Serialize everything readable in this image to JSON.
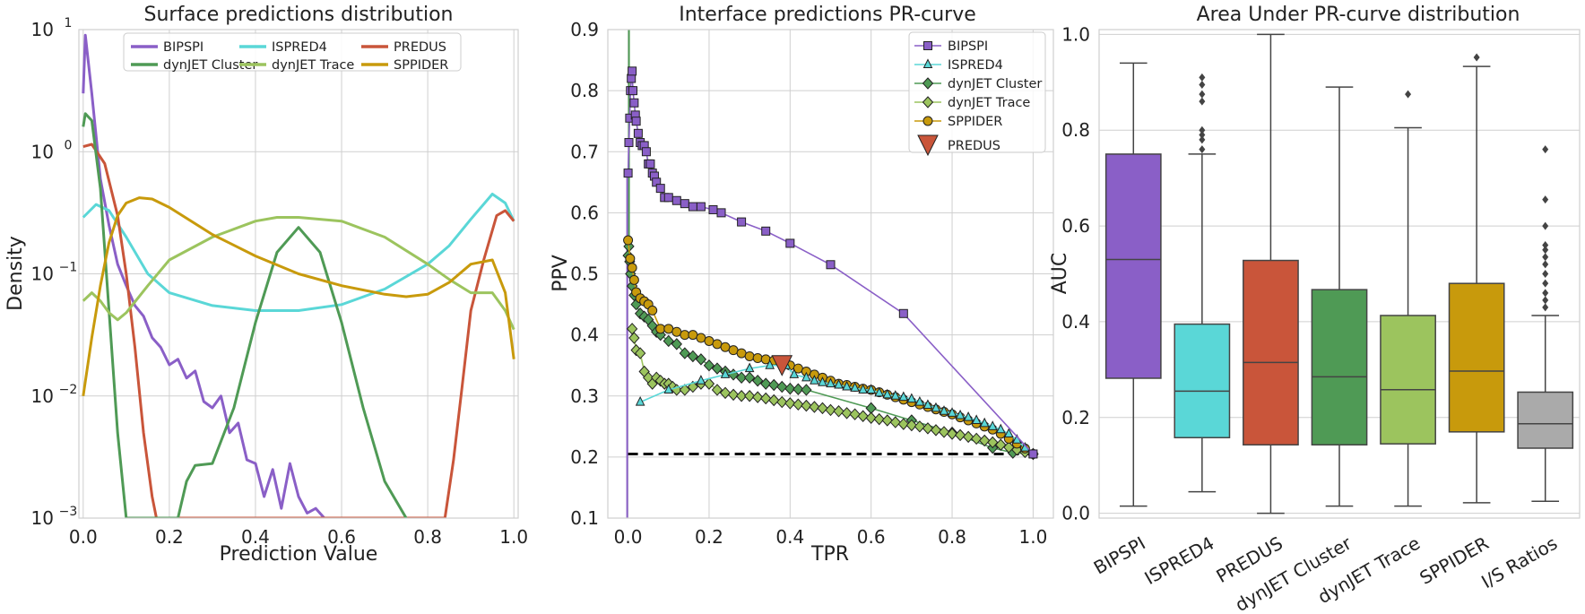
{
  "colors": {
    "BIPSPI": "#8a5fc7",
    "ISPRED4": "#5ad7d7",
    "PREDUS": "#c9553a",
    "dynJET Cluster": "#4f9a55",
    "dynJET Trace": "#9cc45e",
    "SPPIDER": "#c89a0c",
    "I/S Ratios": "#aaaaaa"
  },
  "chart_data": [
    {
      "type": "line",
      "title": "Surface predictions distribution",
      "xlabel": "Prediction Value",
      "ylabel": "Density",
      "yscale": "log",
      "xlim": [
        -0.01,
        1.01
      ],
      "ylim": [
        0.001,
        10
      ],
      "xticks": [
        "0.0",
        "0.2",
        "0.4",
        "0.6",
        "0.8",
        "1.0"
      ],
      "yticks": [
        {
          "base": "10",
          "exp": "−3"
        },
        {
          "base": "10",
          "exp": "−2"
        },
        {
          "base": "10",
          "exp": "−1"
        },
        {
          "base": "10",
          "exp": "0"
        },
        {
          "base": "10",
          "exp": "1"
        }
      ],
      "grid": true,
      "legend": {
        "placement": "top",
        "columns": 3
      },
      "series": [
        {
          "name": "BIPSPI",
          "x": [
            0,
            0.005,
            0.02,
            0.04,
            0.06,
            0.08,
            0.1,
            0.12,
            0.14,
            0.16,
            0.18,
            0.2,
            0.22,
            0.24,
            0.26,
            0.28,
            0.3,
            0.32,
            0.34,
            0.36,
            0.38,
            0.4,
            0.42,
            0.44,
            0.46,
            0.48,
            0.5,
            0.52,
            0.54,
            0.56
          ],
          "y": [
            3,
            9,
            3,
            0.6,
            0.25,
            0.12,
            0.08,
            0.055,
            0.045,
            0.03,
            0.025,
            0.018,
            0.02,
            0.014,
            0.016,
            0.009,
            0.008,
            0.01,
            0.005,
            0.006,
            0.003,
            0.0028,
            0.0015,
            0.0025,
            0.0012,
            0.0028,
            0.0015,
            0.0011,
            0.0012,
            0.001
          ]
        },
        {
          "name": "ISPRED4",
          "x": [
            0,
            0.03,
            0.06,
            0.1,
            0.15,
            0.2,
            0.3,
            0.4,
            0.5,
            0.6,
            0.7,
            0.8,
            0.85,
            0.9,
            0.95,
            0.98,
            1.0
          ],
          "y": [
            0.29,
            0.37,
            0.33,
            0.2,
            0.1,
            0.07,
            0.055,
            0.05,
            0.05,
            0.056,
            0.075,
            0.12,
            0.17,
            0.28,
            0.45,
            0.38,
            0.27
          ]
        },
        {
          "name": "PREDUS",
          "x": [
            0,
            0.02,
            0.05,
            0.08,
            0.1,
            0.12,
            0.14,
            0.16,
            0.17,
            0.84,
            0.86,
            0.88,
            0.9,
            0.93,
            0.96,
            0.98,
            1.0
          ],
          "y": [
            1.1,
            1.15,
            0.8,
            0.3,
            0.1,
            0.025,
            0.005,
            0.0015,
            0.001,
            0.001,
            0.003,
            0.012,
            0.05,
            0.13,
            0.3,
            0.33,
            0.27
          ]
        },
        {
          "name": "dynJET Cluster",
          "x": [
            0,
            0.005,
            0.02,
            0.04,
            0.06,
            0.08,
            0.1,
            0.22,
            0.24,
            0.26,
            0.3,
            0.35,
            0.4,
            0.45,
            0.5,
            0.55,
            0.6,
            0.65,
            0.7,
            0.75
          ],
          "y": [
            1.6,
            2.05,
            1.8,
            0.5,
            0.05,
            0.005,
            0.001,
            0.001,
            0.002,
            0.0027,
            0.0028,
            0.008,
            0.04,
            0.15,
            0.24,
            0.15,
            0.04,
            0.008,
            0.002,
            0.001
          ]
        },
        {
          "name": "dynJET Trace",
          "x": [
            0,
            0.02,
            0.04,
            0.06,
            0.08,
            0.1,
            0.15,
            0.2,
            0.3,
            0.4,
            0.45,
            0.5,
            0.6,
            0.7,
            0.8,
            0.85,
            0.9,
            0.95,
            0.98,
            1.0
          ],
          "y": [
            0.06,
            0.07,
            0.06,
            0.048,
            0.042,
            0.048,
            0.08,
            0.13,
            0.2,
            0.27,
            0.29,
            0.29,
            0.27,
            0.2,
            0.12,
            0.09,
            0.07,
            0.07,
            0.05,
            0.035
          ]
        },
        {
          "name": "SPPIDER",
          "x": [
            0,
            0.02,
            0.04,
            0.06,
            0.08,
            0.1,
            0.13,
            0.16,
            0.2,
            0.3,
            0.4,
            0.5,
            0.6,
            0.7,
            0.75,
            0.8,
            0.85,
            0.9,
            0.95,
            0.98,
            1.0
          ],
          "y": [
            0.01,
            0.03,
            0.08,
            0.18,
            0.3,
            0.38,
            0.42,
            0.41,
            0.35,
            0.21,
            0.14,
            0.1,
            0.08,
            0.068,
            0.065,
            0.068,
            0.085,
            0.12,
            0.13,
            0.07,
            0.02
          ]
        }
      ]
    },
    {
      "type": "line",
      "title": "Interface predictions PR-curve",
      "xlabel": "TPR",
      "ylabel": "PPV",
      "xlim": [
        -0.05,
        1.05
      ],
      "ylim": [
        0.1,
        0.9
      ],
      "xticks": [
        "0.0",
        "0.2",
        "0.4",
        "0.6",
        "0.8",
        "1.0"
      ],
      "yticks": [
        "0.1",
        "0.2",
        "0.3",
        "0.4",
        "0.5",
        "0.6",
        "0.7",
        "0.8",
        "0.9"
      ],
      "grid": true,
      "legend": {
        "placement": "top-right"
      },
      "baseline_ppv": 0.205,
      "series": [
        {
          "name": "BIPSPI",
          "marker": "square",
          "x": [
            0.0,
            0.002,
            0.004,
            0.006,
            0.008,
            0.01,
            0.012,
            0.015,
            0.018,
            0.02,
            0.025,
            0.03,
            0.035,
            0.04,
            0.045,
            0.05,
            0.055,
            0.06,
            0.065,
            0.07,
            0.08,
            0.09,
            0.1,
            0.12,
            0.14,
            0.16,
            0.18,
            0.21,
            0.23,
            0.28,
            0.34,
            0.4,
            0.5,
            0.68,
            1.0
          ],
          "y": [
            0.665,
            0.715,
            0.755,
            0.8,
            0.82,
            0.832,
            0.8,
            0.78,
            0.76,
            0.75,
            0.73,
            0.715,
            0.71,
            0.71,
            0.7,
            0.68,
            0.68,
            0.665,
            0.66,
            0.65,
            0.64,
            0.625,
            0.625,
            0.62,
            0.615,
            0.61,
            0.61,
            0.605,
            0.6,
            0.585,
            0.57,
            0.55,
            0.515,
            0.435,
            0.205
          ]
        },
        {
          "name": "ISPRED4",
          "marker": "triangle",
          "x": [
            0.03,
            0.1,
            0.18,
            0.24,
            0.3,
            0.35,
            0.39,
            0.41,
            0.44,
            0.46,
            0.48,
            0.5,
            0.52,
            0.54,
            0.56,
            0.58,
            0.6,
            0.62,
            0.64,
            0.66,
            0.68,
            0.7,
            0.72,
            0.74,
            0.76,
            0.78,
            0.8,
            0.82,
            0.84,
            0.86,
            0.88,
            0.9,
            0.92,
            0.94,
            0.96,
            0.98,
            1.0
          ],
          "y": [
            0.29,
            0.31,
            0.325,
            0.335,
            0.345,
            0.35,
            0.35,
            0.335,
            0.33,
            0.325,
            0.322,
            0.32,
            0.318,
            0.315,
            0.313,
            0.31,
            0.31,
            0.305,
            0.302,
            0.3,
            0.298,
            0.295,
            0.29,
            0.285,
            0.28,
            0.275,
            0.272,
            0.268,
            0.265,
            0.26,
            0.255,
            0.25,
            0.245,
            0.238,
            0.228,
            0.215,
            0.205
          ]
        },
        {
          "name": "dynJET Cluster",
          "marker": "diamond",
          "x": [
            0.0,
            0.002,
            0.004,
            0.006,
            0.01,
            0.015,
            0.02,
            0.03,
            0.04,
            0.05,
            0.06,
            0.07,
            0.08,
            0.1,
            0.12,
            0.14,
            0.16,
            0.18,
            0.2,
            0.22,
            0.24,
            0.26,
            0.28,
            0.3,
            0.32,
            0.34,
            0.36,
            0.38,
            0.4,
            0.42,
            0.44,
            0.6,
            0.7,
            0.8,
            0.9,
            0.95,
            1.0
          ],
          "y": [
            0.53,
            0.545,
            0.52,
            0.5,
            0.48,
            0.465,
            0.45,
            0.435,
            0.43,
            0.425,
            0.415,
            0.405,
            0.4,
            0.39,
            0.385,
            0.37,
            0.365,
            0.36,
            0.35,
            0.345,
            0.34,
            0.335,
            0.33,
            0.33,
            0.325,
            0.32,
            0.318,
            0.315,
            0.312,
            0.311,
            0.31,
            0.28,
            0.26,
            0.24,
            0.215,
            0.207,
            0.205
          ]
        },
        {
          "name": "dynJET Trace",
          "marker": "diamond",
          "x": [
            0.01,
            0.015,
            0.02,
            0.03,
            0.04,
            0.05,
            0.06,
            0.07,
            0.08,
            0.09,
            0.1,
            0.11,
            0.12,
            0.14,
            0.16,
            0.18,
            0.2,
            0.22,
            0.24,
            0.26,
            0.28,
            0.3,
            0.32,
            0.34,
            0.36,
            0.38,
            0.4,
            0.42,
            0.44,
            0.46,
            0.48,
            0.5,
            0.52,
            0.54,
            0.56,
            0.58,
            0.6,
            0.62,
            0.64,
            0.66,
            0.68,
            0.7,
            0.72,
            0.74,
            0.76,
            0.78,
            0.8,
            0.82,
            0.84,
            0.86,
            0.88,
            0.9,
            0.92,
            0.94,
            0.96,
            0.98,
            1.0
          ],
          "y": [
            0.41,
            0.395,
            0.375,
            0.37,
            0.34,
            0.33,
            0.32,
            0.33,
            0.325,
            0.32,
            0.32,
            0.315,
            0.31,
            0.31,
            0.315,
            0.32,
            0.32,
            0.31,
            0.305,
            0.302,
            0.3,
            0.3,
            0.298,
            0.296,
            0.293,
            0.29,
            0.288,
            0.286,
            0.284,
            0.282,
            0.28,
            0.277,
            0.275,
            0.272,
            0.27,
            0.267,
            0.264,
            0.262,
            0.26,
            0.257,
            0.254,
            0.252,
            0.25,
            0.247,
            0.244,
            0.241,
            0.238,
            0.236,
            0.233,
            0.23,
            0.227,
            0.224,
            0.22,
            0.216,
            0.212,
            0.208,
            0.205
          ]
        },
        {
          "name": "SPPIDER",
          "marker": "circle",
          "x": [
            0.0,
            0.005,
            0.01,
            0.015,
            0.02,
            0.03,
            0.04,
            0.05,
            0.06,
            0.08,
            0.1,
            0.12,
            0.14,
            0.16,
            0.18,
            0.2,
            0.22,
            0.24,
            0.26,
            0.28,
            0.3,
            0.32,
            0.34,
            0.36,
            0.38,
            0.4,
            0.42,
            0.44,
            0.46,
            0.48,
            0.5,
            0.52,
            0.54,
            0.56,
            0.58,
            0.6,
            0.62,
            0.64,
            0.66,
            0.68,
            0.7,
            0.72,
            0.74,
            0.76,
            0.78,
            0.8,
            0.82,
            0.84,
            0.86,
            0.88,
            0.9,
            0.92,
            0.94,
            0.96,
            0.98,
            1.0
          ],
          "y": [
            0.555,
            0.525,
            0.51,
            0.49,
            0.47,
            0.46,
            0.455,
            0.45,
            0.44,
            0.41,
            0.41,
            0.405,
            0.4,
            0.4,
            0.395,
            0.39,
            0.385,
            0.38,
            0.375,
            0.37,
            0.365,
            0.362,
            0.36,
            0.358,
            0.355,
            0.35,
            0.345,
            0.34,
            0.335,
            0.33,
            0.325,
            0.32,
            0.318,
            0.315,
            0.312,
            0.31,
            0.306,
            0.302,
            0.298,
            0.294,
            0.29,
            0.286,
            0.282,
            0.278,
            0.274,
            0.27,
            0.265,
            0.26,
            0.255,
            0.25,
            0.245,
            0.238,
            0.23,
            0.222,
            0.214,
            0.205
          ]
        },
        {
          "name": "PREDUS",
          "marker": "triangle-down",
          "x": [
            0.38
          ],
          "y": [
            0.35
          ]
        }
      ]
    },
    {
      "type": "box",
      "title": "Area Under PR-curve distribution",
      "ylabel": "AUC",
      "ylim": [
        -0.01,
        1.01
      ],
      "yticks": [
        "0.0",
        "0.2",
        "0.4",
        "0.6",
        "0.8",
        "1.0"
      ],
      "grid": true,
      "categories": [
        "BIPSPI",
        "ISPRED4",
        "PREDUS",
        "dynJET Cluster",
        "dynJET Trace",
        "SPPIDER",
        "I/S Ratios"
      ],
      "boxes": [
        {
          "name": "BIPSPI",
          "min": 0.015,
          "q1": 0.282,
          "median": 0.53,
          "q3": 0.75,
          "max": 0.94,
          "outliers": []
        },
        {
          "name": "ISPRED4",
          "min": 0.045,
          "q1": 0.158,
          "median": 0.255,
          "q3": 0.395,
          "max": 0.75,
          "outliers": [
            0.76,
            0.78,
            0.79,
            0.8,
            0.86,
            0.875,
            0.895,
            0.91
          ]
        },
        {
          "name": "PREDUS",
          "min": 0.0,
          "q1": 0.143,
          "median": 0.315,
          "q3": 0.528,
          "max": 1.0,
          "outliers": []
        },
        {
          "name": "dynJET Cluster",
          "min": 0.015,
          "q1": 0.143,
          "median": 0.285,
          "q3": 0.467,
          "max": 0.89,
          "outliers": []
        },
        {
          "name": "dynJET Trace",
          "min": 0.015,
          "q1": 0.145,
          "median": 0.258,
          "q3": 0.413,
          "max": 0.805,
          "outliers": [
            0.875
          ]
        },
        {
          "name": "SPPIDER",
          "min": 0.022,
          "q1": 0.17,
          "median": 0.297,
          "q3": 0.48,
          "max": 0.933,
          "outliers": [
            0.952
          ]
        },
        {
          "name": "I/S Ratios",
          "min": 0.025,
          "q1": 0.136,
          "median": 0.187,
          "q3": 0.253,
          "max": 0.413,
          "outliers": [
            0.43,
            0.445,
            0.46,
            0.48,
            0.5,
            0.52,
            0.535,
            0.55,
            0.56,
            0.6,
            0.655,
            0.76
          ]
        }
      ]
    }
  ]
}
